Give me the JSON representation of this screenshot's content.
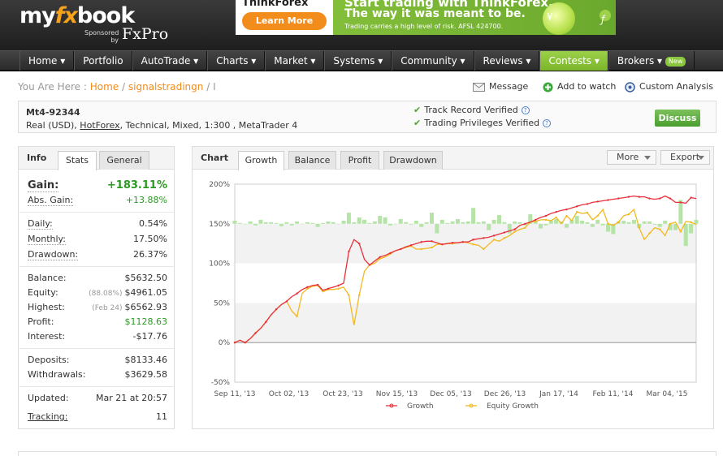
{
  "header": {
    "logo_prefix": "my",
    "logo_fx": "fx",
    "logo_suffix": "book",
    "sponsored": "Sponsored by",
    "sponsor": "FxPro"
  },
  "banner": {
    "brand": "ThinkForex",
    "button": "Learn More",
    "headline": "Start trading with ThinkForex.",
    "subheadline": "The way it was meant to be.",
    "disclaimer": "Trading carries a high level of risk. AFSL 424700.",
    "glyph_yen": "¥",
    "glyph_f": "ƒ"
  },
  "nav": [
    {
      "label": "Home ▾"
    },
    {
      "label": "Portfolio"
    },
    {
      "label": "AutoTrade ▾"
    },
    {
      "label": "Charts ▾"
    },
    {
      "label": "Market ▾"
    },
    {
      "label": "Systems ▾"
    },
    {
      "label": "Community ▾"
    },
    {
      "label": "Reviews ▾"
    },
    {
      "label": "Contests ▾"
    },
    {
      "label": "Brokers ▾",
      "badge": "New"
    }
  ],
  "breadcrumb": {
    "prefix": "You Are Here :",
    "home": "Home",
    "sep1": "/",
    "page": "signalstradingn",
    "sep2": "/ I"
  },
  "actions": {
    "message": "Message",
    "watch": "Add to watch",
    "analysis": "Custom Analysis"
  },
  "account": {
    "name": "Mt4-92344",
    "desc_prefix": "Real (USD), ",
    "broker": "HotForex",
    "desc_suffix": ", Technical, Mixed, 1:300 , MetaTrader 4",
    "track_record": "Track Record Verified",
    "privileges": "Trading Privileges Verified",
    "discuss": "Discuss"
  },
  "info": {
    "title": "Info",
    "tab_stats": "Stats",
    "tab_general": "General",
    "gain_label": "Gain:",
    "gain_value": "+183.11%",
    "abs_gain_label": "Abs. Gain:",
    "abs_gain_value": "+13.88%",
    "daily_label": "Daily:",
    "daily_value": "0.54%",
    "monthly_label": "Monthly:",
    "monthly_value": "17.50%",
    "drawdown_label": "Drawdown:",
    "drawdown_value": "26.37%",
    "balance_label": "Balance:",
    "balance_value": "$5632.50",
    "equity_label": "Equity:",
    "equity_sub": "(88.08%)",
    "equity_value": "$4961.05",
    "highest_label": "Highest:",
    "highest_sub": "(Feb 24)",
    "highest_value": "$6562.93",
    "profit_label": "Profit:",
    "profit_value": "$1128.63",
    "interest_label": "Interest:",
    "interest_value": "-$17.76",
    "deposits_label": "Deposits:",
    "deposits_value": "$8133.46",
    "withdrawals_label": "Withdrawals:",
    "withdrawals_value": "$3629.58",
    "updated_label": "Updated:",
    "updated_value": "Mar 21 at 20:57",
    "tracking_label": "Tracking:",
    "tracking_value": "11"
  },
  "chart_panel": {
    "title": "Chart",
    "tabs": [
      "Growth",
      "Balance",
      "Profit",
      "Drawdown"
    ],
    "more": "More",
    "export": "Export"
  },
  "colors": {
    "growth": "#e8313a",
    "equity": "#f2b81e",
    "bars": "#b5e3a8",
    "accent": "#f28c1a",
    "green": "#2a9a22"
  },
  "chart_data": {
    "type": "line",
    "ylim": [
      -50,
      200
    ],
    "yticks": [
      "200%",
      "150%",
      "100%",
      "50%",
      "0%",
      "-50%"
    ],
    "xticks": [
      "Sep 11, '13",
      "Oct 02, '13",
      "Oct 23, '13",
      "Nov 15, '13",
      "Dec 05, '13",
      "Dec 26, '13",
      "Jan 17, '14",
      "Feb 11, '14",
      "Mar 04, '15"
    ],
    "series": [
      {
        "name": "Growth",
        "values": [
          0,
          3,
          0,
          5,
          12,
          18,
          26,
          35,
          42,
          48,
          52,
          58,
          62,
          67,
          70,
          72,
          73,
          66,
          68,
          70,
          72,
          75,
          115,
          130,
          125,
          105,
          98,
          103,
          108,
          110,
          113,
          116,
          118,
          121,
          123,
          125,
          127,
          128,
          128,
          126,
          124,
          125,
          126,
          126,
          127,
          127,
          130,
          131,
          132,
          133,
          135,
          137,
          139,
          141,
          143,
          148,
          150,
          152,
          155,
          158,
          160,
          163,
          165,
          167,
          168,
          170,
          172,
          174,
          175,
          177,
          178,
          179,
          180,
          181,
          182,
          183,
          184,
          185,
          184,
          184,
          182,
          181,
          182,
          185,
          182,
          177,
          177,
          176,
          183,
          182
        ]
      },
      {
        "name": "Equity Growth",
        "values": [
          0,
          3,
          0,
          5,
          12,
          18,
          26,
          35,
          42,
          48,
          52,
          40,
          33,
          62,
          68,
          71,
          72,
          64,
          67,
          67,
          68,
          70,
          60,
          22,
          60,
          90,
          98,
          100,
          106,
          108,
          112,
          116,
          118,
          120,
          122,
          118,
          118,
          119,
          120,
          124,
          124,
          125,
          125,
          126,
          127,
          126,
          124,
          123,
          118,
          124,
          130,
          128,
          132,
          135,
          140,
          143,
          145,
          152,
          153,
          155,
          155,
          154,
          158,
          150,
          160,
          154,
          165,
          163,
          164,
          155,
          160,
          168,
          150,
          148,
          152,
          160,
          162,
          168,
          145,
          130,
          138,
          145,
          143,
          135,
          150,
          152,
          140,
          153,
          152,
          149
        ]
      }
    ],
    "bars_label": "daily profit",
    "bars": [
      4,
      1,
      0,
      3,
      -2,
      5,
      2,
      2,
      1,
      -3,
      2,
      -2,
      3,
      0,
      2,
      1,
      -4,
      1,
      3,
      2,
      0,
      4,
      14,
      2,
      8,
      5,
      1,
      3,
      10,
      8,
      -2,
      0,
      6,
      2,
      -1,
      4,
      -4,
      2,
      14,
      -12,
      5,
      1,
      3,
      6,
      2,
      3,
      20,
      2,
      3,
      -8,
      5,
      11,
      2,
      -12,
      3,
      2,
      -2,
      12,
      3,
      -6,
      -2,
      4,
      6,
      3,
      -5,
      5,
      10,
      4,
      2,
      -4,
      5,
      -2,
      -10,
      -13,
      3,
      4,
      2,
      5,
      -5,
      3,
      3,
      -1,
      -4,
      4,
      -8,
      -8,
      30,
      -28,
      -12,
      5
    ]
  }
}
